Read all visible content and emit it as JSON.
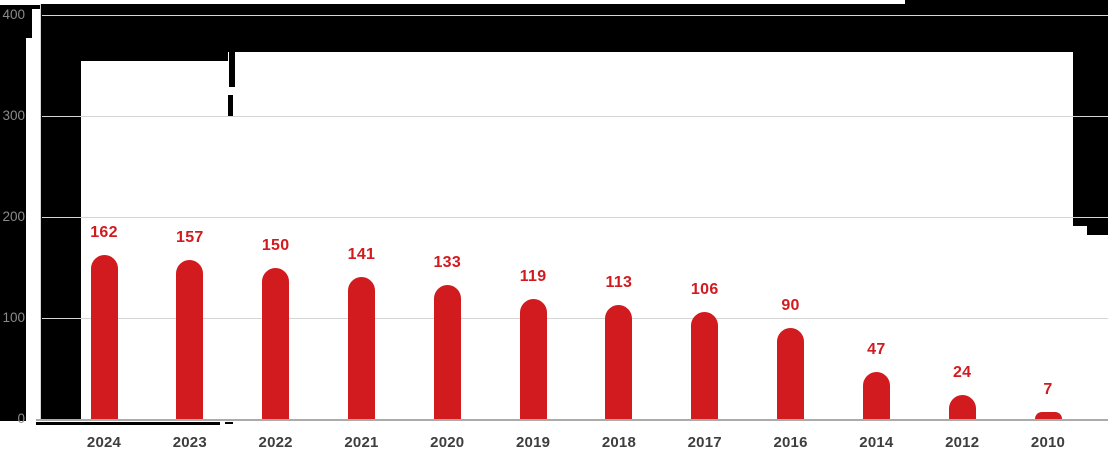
{
  "chart_data": {
    "type": "bar",
    "title": "",
    "categories": [
      "2024",
      "2023",
      "2022",
      "2021",
      "2020",
      "2019",
      "2018",
      "2017",
      "2016",
      "2014",
      "2012",
      "2010"
    ],
    "values": [
      162,
      157,
      150,
      141,
      133,
      119,
      113,
      106,
      90,
      47,
      24,
      7
    ],
    "value_labels": [
      "162",
      "157",
      "150",
      "141",
      "133",
      "119",
      "113",
      "106",
      "90",
      "47",
      "24",
      "7"
    ],
    "yticks": [
      0,
      100,
      200,
      300,
      400
    ],
    "ytick_labels": [
      "0",
      "100",
      "200",
      "300",
      "400"
    ],
    "ylim": [
      0,
      400
    ],
    "xlabel": "",
    "ylabel": "",
    "grid": true,
    "legend_position": "none"
  },
  "colors": {
    "bar": "#d11b1f",
    "value_label": "#d11b1f",
    "x_tick_label": "#3e3e3e",
    "y_tick_label": "#8a8a8a",
    "gridline": "#d5d5d5",
    "baseline": "#ababab",
    "redaction": "#000000",
    "background": "#ffffff"
  }
}
